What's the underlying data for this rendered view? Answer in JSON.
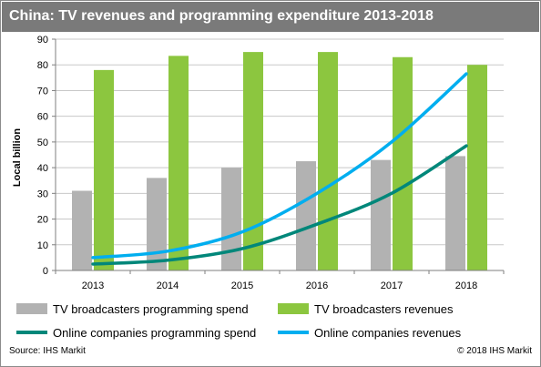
{
  "title": "China: TV revenues and programming expenditure 2013-2018",
  "source": "Source: IHS Markit",
  "copyright": "© 2018 IHS Markit",
  "colors": {
    "tv_spend": "#b2b2b2",
    "tv_revenue": "#8cc63f",
    "online_spend": "#00877a",
    "online_revenue": "#00aeef",
    "header": "#7a7a7a"
  },
  "chart_data": {
    "type": "bar",
    "title": "China: TV revenues and programming expenditure 2013-2018",
    "ylabel": "Local billion",
    "xlabel": "",
    "ylim": [
      0,
      90
    ],
    "yticks": [
      0,
      10,
      20,
      30,
      40,
      50,
      60,
      70,
      80,
      90
    ],
    "categories": [
      "2013",
      "2014",
      "2015",
      "2016",
      "2017",
      "2018"
    ],
    "grid": true,
    "legend": "bottom",
    "series": [
      {
        "name": "TV broadcasters programming spend",
        "kind": "bar",
        "color": "#b2b2b2",
        "values": [
          31,
          36,
          40,
          42.5,
          43,
          44.5
        ]
      },
      {
        "name": "TV broadcasters revenues",
        "kind": "bar",
        "color": "#8cc63f",
        "values": [
          78,
          83.5,
          85,
          85,
          83,
          80
        ]
      },
      {
        "name": "Online companies programming spend",
        "kind": "line",
        "color": "#00877a",
        "values": [
          2.5,
          4,
          8.5,
          18,
          30,
          48.5
        ]
      },
      {
        "name": "Online companies revenues",
        "kind": "line",
        "color": "#00aeef",
        "values": [
          5,
          7.5,
          15,
          30,
          50,
          76.5
        ]
      }
    ]
  }
}
